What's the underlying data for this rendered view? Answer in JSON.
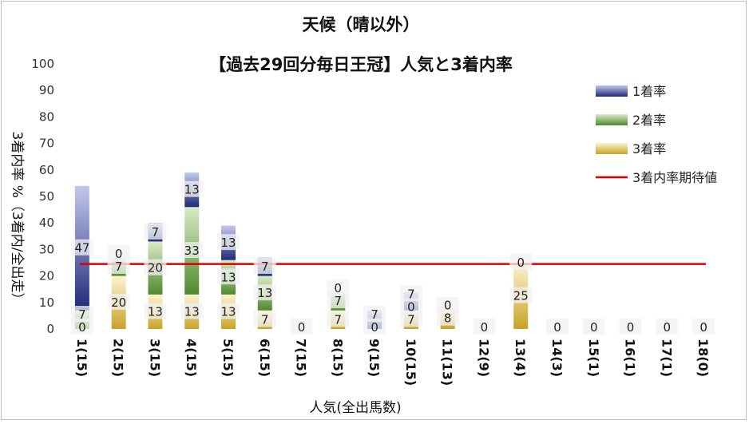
{
  "chart_data": {
    "type": "bar",
    "title": "天候（晴以外）",
    "subtitle": "【過去29回分毎日王冠】人気と3着内率",
    "xlabel": "人気(全出馬数)",
    "ylabel": "3着内率 %（3着内/全出走）",
    "ylim": [
      0,
      100
    ],
    "yticks": [
      0,
      10,
      20,
      30,
      40,
      50,
      60,
      70,
      80,
      90,
      100
    ],
    "categories": [
      "1(15)",
      "2(15)",
      "3(15)",
      "4(15)",
      "5(15)",
      "6(15)",
      "7(15)",
      "8(15)",
      "9(15)",
      "10(15)",
      "11(13)",
      "12(9)",
      "13(4)",
      "14(3)",
      "15(1)",
      "16(1)",
      "17(1)",
      "18(0)"
    ],
    "series": [
      {
        "name": "3着率",
        "values": [
          0,
          20,
          13,
          13,
          13,
          7,
          0,
          7,
          0,
          7,
          8,
          0,
          25,
          0,
          0,
          0,
          0,
          0
        ],
        "color": "#c9a227"
      },
      {
        "name": "2着率",
        "values": [
          7,
          7,
          20,
          33,
          13,
          13,
          0,
          7,
          0,
          0,
          0,
          0,
          0,
          0,
          0,
          0,
          0,
          0
        ],
        "color": "#4f8a2e"
      },
      {
        "name": "1着率",
        "values": [
          47,
          0,
          7,
          13,
          13,
          7,
          0,
          0,
          7,
          7,
          0,
          0,
          0,
          0,
          0,
          0,
          0,
          0
        ],
        "color": "#2e3a87"
      }
    ],
    "bar_labels": [
      [
        "0",
        "7",
        "47"
      ],
      [
        "20",
        "7",
        "0"
      ],
      [
        "13",
        "20",
        "7"
      ],
      [
        "13",
        "33",
        "13"
      ],
      [
        "13",
        "13",
        "13"
      ],
      [
        "7",
        "13",
        "7"
      ],
      [
        "0"
      ],
      [
        "7",
        "7",
        "0"
      ],
      [
        "0",
        "7"
      ],
      [
        "7",
        "0",
        "7"
      ],
      [
        "8",
        "0"
      ],
      [
        "0"
      ],
      [
        "25",
        "0"
      ],
      [
        "0"
      ],
      [
        "0"
      ],
      [
        "0"
      ],
      [
        "0"
      ],
      [
        "0"
      ]
    ],
    "reference_line": {
      "name": "3着内率期待値",
      "value": 24.5,
      "color": "#e00000"
    },
    "legend": {
      "position": "right"
    },
    "grid": false
  }
}
